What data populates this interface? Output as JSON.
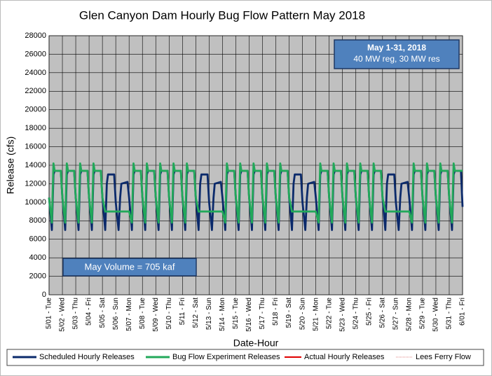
{
  "chart_data": {
    "type": "line",
    "title": "Glen Canyon Dam Hourly Bug Flow Pattern May 2018",
    "ylabel": "Release (cfs)",
    "xlabel": "Date-Hour",
    "annotations": [
      "May 1-31, 2018",
      "40 MW reg, 30 MW res",
      "May Volume = 705 kaf"
    ],
    "ylim": [
      0,
      28000
    ],
    "yticks": [
      0,
      2000,
      4000,
      6000,
      8000,
      10000,
      12000,
      14000,
      16000,
      18000,
      20000,
      22000,
      24000,
      26000,
      28000
    ],
    "xlim": [
      0,
      31
    ],
    "xticks": [
      {
        "value": 0,
        "label": "5/01 - Tue"
      },
      {
        "value": 1,
        "label": "5/02 - Wed"
      },
      {
        "value": 2,
        "label": "5/03 - Thu"
      },
      {
        "value": 3,
        "label": "5/04 - Fri"
      },
      {
        "value": 4,
        "label": "5/05 - Sat"
      },
      {
        "value": 5,
        "label": "5/06 - Sun"
      },
      {
        "value": 6,
        "label": "5/07 - Mon"
      },
      {
        "value": 7,
        "label": "5/08 - Tue"
      },
      {
        "value": 8,
        "label": "5/09 - Wed"
      },
      {
        "value": 9,
        "label": "5/10 - Thu"
      },
      {
        "value": 10,
        "label": "5/11 - Fri"
      },
      {
        "value": 11,
        "label": "5/12 - Sat"
      },
      {
        "value": 12,
        "label": "5/13 - Sun"
      },
      {
        "value": 13,
        "label": "5/14 - Mon"
      },
      {
        "value": 14,
        "label": "5/15 - Tue"
      },
      {
        "value": 15,
        "label": "5/16 - Wed"
      },
      {
        "value": 16,
        "label": "5/17 - Thu"
      },
      {
        "value": 17,
        "label": "5/18 - Fri"
      },
      {
        "value": 18,
        "label": "5/19 - Sat"
      },
      {
        "value": 19,
        "label": "5/20 - Sun"
      },
      {
        "value": 20,
        "label": "5/21 - Mon"
      },
      {
        "value": 21,
        "label": "5/22 - Tue"
      },
      {
        "value": 22,
        "label": "5/23 - Wed"
      },
      {
        "value": 23,
        "label": "5/24 - Thu"
      },
      {
        "value": 24,
        "label": "5/25 - Fri"
      },
      {
        "value": 25,
        "label": "5/26 - Sat"
      },
      {
        "value": 26,
        "label": "5/27 - Sun"
      },
      {
        "value": 27,
        "label": "5/28 - Mon"
      },
      {
        "value": 28,
        "label": "5/29 - Tue"
      },
      {
        "value": 29,
        "label": "5/30 - Wed"
      },
      {
        "value": 30,
        "label": "5/31 - Thu"
      },
      {
        "value": 31,
        "label": "6/01 - Fri"
      }
    ],
    "grid": true,
    "x": [
      0,
      0.21,
      0.33,
      0.42,
      0.88,
      1,
      1.21,
      1.33,
      1.42,
      1.88,
      2,
      2.21,
      2.33,
      2.42,
      2.88,
      3,
      3.21,
      3.33,
      3.42,
      3.88,
      4,
      4.21,
      4.33,
      4.42,
      4.88,
      5,
      5.21,
      5.33,
      5.42,
      5.88,
      6,
      6.21,
      6.33,
      6.42,
      6.88,
      7,
      7.21,
      7.33,
      7.42,
      7.88,
      8,
      8.21,
      8.33,
      8.42,
      8.88,
      9,
      9.21,
      9.33,
      9.42,
      9.88,
      10,
      10.21,
      10.33,
      10.42,
      10.88,
      11,
      11.21,
      11.33,
      11.42,
      11.88,
      12,
      12.21,
      12.33,
      12.42,
      12.88,
      13,
      13.21,
      13.33,
      13.42,
      13.88,
      14,
      14.21,
      14.33,
      14.42,
      14.88,
      15,
      15.21,
      15.33,
      15.42,
      15.88,
      16,
      16.21,
      16.33,
      16.42,
      16.88,
      17,
      17.21,
      17.33,
      17.42,
      17.88,
      18,
      18.21,
      18.33,
      18.42,
      18.88,
      19,
      19.21,
      19.33,
      19.42,
      19.88,
      20,
      20.21,
      20.33,
      20.42,
      20.88,
      21,
      21.21,
      21.33,
      21.42,
      21.88,
      22,
      22.21,
      22.33,
      22.42,
      22.88,
      23,
      23.21,
      23.33,
      23.42,
      23.88,
      24,
      24.21,
      24.33,
      24.42,
      24.88,
      25,
      25.21,
      25.33,
      25.42,
      25.88,
      26,
      26.21,
      26.33,
      26.42,
      26.88,
      27,
      27.21,
      27.33,
      27.42,
      27.88,
      28,
      28.21,
      28.33,
      28.42,
      28.88,
      29,
      29.21,
      29.33,
      29.42,
      29.88,
      30,
      30.21,
      30.33,
      30.42,
      30.88,
      31
    ],
    "series": [
      {
        "name": "Scheduled Hourly Releases",
        "color": "#0b2a6b",
        "values": [
          10500,
          7000,
          13000,
          13400,
          13400,
          10500,
          7000,
          13000,
          13400,
          13400,
          10500,
          7000,
          13000,
          13400,
          13400,
          10500,
          7000,
          13000,
          13400,
          13400,
          10500,
          7000,
          12000,
          13000,
          13000,
          10000,
          7000,
          10500,
          12000,
          12200,
          10500,
          7000,
          13000,
          13400,
          13400,
          10500,
          7000,
          13000,
          13400,
          13400,
          10500,
          7000,
          13000,
          13400,
          13400,
          10500,
          7000,
          13000,
          13400,
          13400,
          10500,
          7000,
          13000,
          13400,
          13400,
          10500,
          7000,
          12000,
          13000,
          13000,
          10000,
          7000,
          10500,
          12000,
          12200,
          10500,
          7000,
          13000,
          13400,
          13400,
          10500,
          7000,
          13000,
          13400,
          13400,
          10500,
          7000,
          13000,
          13400,
          13400,
          10500,
          7000,
          13000,
          13400,
          13400,
          10500,
          7000,
          13000,
          13400,
          13400,
          10500,
          7000,
          12000,
          13000,
          13000,
          10000,
          7000,
          10500,
          12000,
          12200,
          10500,
          7000,
          13000,
          13400,
          13400,
          10500,
          7000,
          13000,
          13400,
          13400,
          10500,
          7000,
          13000,
          13400,
          13400,
          10500,
          7000,
          13000,
          13400,
          13400,
          10500,
          7000,
          13000,
          13400,
          13400,
          10500,
          7000,
          12000,
          13000,
          13000,
          10000,
          7000,
          10500,
          12000,
          12200,
          10500,
          7000,
          13000,
          13400,
          13400,
          10500,
          7000,
          13000,
          13400,
          13400,
          10500,
          7000,
          13000,
          13400,
          13400,
          10500,
          7000,
          13000,
          13400,
          13400,
          9500
        ]
      },
      {
        "name": "Bug Flow Experiment Releases",
        "color": "#22a85a",
        "values": [
          10500,
          7800,
          14200,
          13400,
          13400,
          10500,
          7800,
          14200,
          13400,
          13400,
          10500,
          7800,
          14200,
          13400,
          13400,
          10500,
          7800,
          14200,
          13400,
          13400,
          10500,
          9000,
          9000,
          9000,
          9000,
          9000,
          9000,
          9000,
          9000,
          9000,
          9000,
          7800,
          14200,
          13400,
          13400,
          10500,
          7800,
          14200,
          13400,
          13400,
          10500,
          7800,
          14200,
          13400,
          13400,
          10500,
          7800,
          14200,
          13400,
          13400,
          10500,
          7800,
          14200,
          13400,
          13400,
          10500,
          9000,
          9000,
          9000,
          9000,
          9000,
          9000,
          9000,
          9000,
          9000,
          9000,
          7800,
          14200,
          13400,
          13400,
          10500,
          7800,
          14200,
          13400,
          13400,
          10500,
          7800,
          14200,
          13400,
          13400,
          10500,
          7800,
          14200,
          13400,
          13400,
          10500,
          7800,
          14200,
          13400,
          13400,
          10500,
          9000,
          9000,
          9000,
          9000,
          9000,
          9000,
          9000,
          9000,
          9000,
          9000,
          7800,
          14200,
          13400,
          13400,
          10500,
          7800,
          14200,
          13400,
          13400,
          10500,
          7800,
          14200,
          13400,
          13400,
          10500,
          7800,
          14200,
          13400,
          13400,
          10500,
          7800,
          14200,
          13400,
          13400,
          10500,
          9000,
          9000,
          9000,
          9000,
          9000,
          9000,
          9000,
          9000,
          9000,
          9000,
          7800,
          14200,
          13400,
          13400,
          10500,
          7800,
          14200,
          13400,
          13400,
          10500,
          7800,
          14200,
          13400,
          13400,
          10500,
          7800,
          14200,
          13400,
          13400,
          13400
        ]
      }
    ],
    "legend_extra": [
      {
        "name": "Actual Hourly Releases",
        "color": "#e00000"
      },
      {
        "name": "Lees Ferry Flow",
        "color": "#e08080"
      }
    ]
  }
}
